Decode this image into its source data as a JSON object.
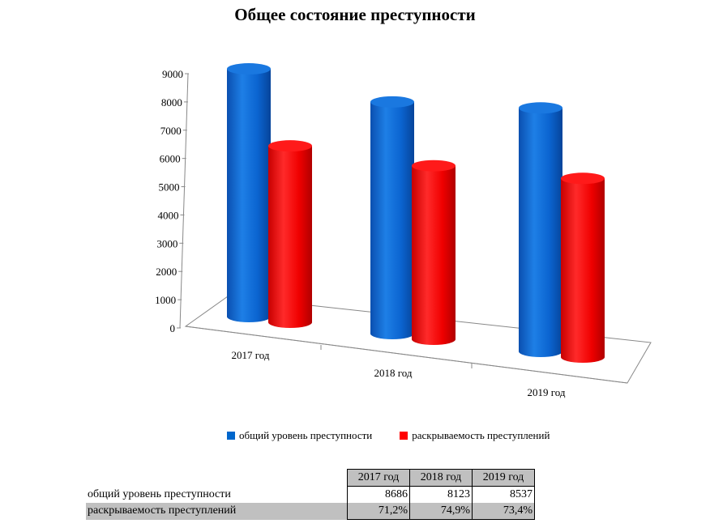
{
  "title": "Общее состояние преступности",
  "chart_data": {
    "type": "bar",
    "title": "Общее состояние преступности",
    "categories": [
      "2017 год",
      "2018 год",
      "2019 год"
    ],
    "series": [
      {
        "name": "общий уровень преступности",
        "values": [
          8686,
          8123,
          8537
        ],
        "color": "#0066cc"
      },
      {
        "name": "раскрываемость преступлений",
        "values": [
          6184,
          6084,
          6266
        ],
        "color": "#ff0000"
      }
    ],
    "yticks": [
      "9000",
      "8000",
      "7000",
      "6000",
      "5000",
      "4000",
      "3000",
      "2000",
      "1000",
      "0"
    ],
    "ylim": [
      0,
      9000
    ],
    "legend": "bottom",
    "style": "3d-cylinder"
  },
  "table": {
    "headers": [
      "2017 год",
      "2018 год",
      "2019 год"
    ],
    "rows": [
      {
        "label": "общий уровень преступности",
        "values": [
          "8686",
          "8123",
          "8537"
        ]
      },
      {
        "label": "раскрываемость преступлений",
        "values": [
          "71,2%",
          "74,9%",
          "73,4%"
        ]
      }
    ]
  }
}
